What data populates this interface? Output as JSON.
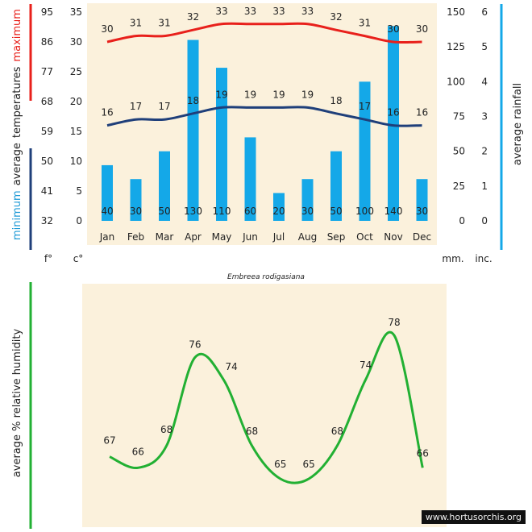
{
  "caption": "Embreea rodigasiana",
  "watermark": "www.hortusorchis.org",
  "colors": {
    "max": "#e8201b",
    "min": "#1f3f7a",
    "rain": "#14a8e8",
    "humidity": "#22b033",
    "paper": "#fbf1dc"
  },
  "chart_data": [
    {
      "type": "bar+line",
      "title": "",
      "categories": [
        "Jan",
        "Feb",
        "Mar",
        "Apr",
        "May",
        "Jun",
        "Jul",
        "Aug",
        "Sep",
        "Oct",
        "Nov",
        "Dec"
      ],
      "series": [
        {
          "name": "maximum",
          "type": "line",
          "values": [
            30,
            31,
            31,
            32,
            33,
            33,
            33,
            33,
            32,
            31,
            30,
            30
          ]
        },
        {
          "name": "minimum",
          "type": "line",
          "values": [
            16,
            17,
            17,
            18,
            19,
            19,
            19,
            19,
            18,
            17,
            16,
            16
          ]
        },
        {
          "name": "rainfall",
          "type": "bar",
          "values": [
            40,
            30,
            50,
            130,
            110,
            60,
            20,
            30,
            50,
            100,
            140,
            30
          ]
        }
      ],
      "left_axis_label": {
        "words": [
          "minimum",
          "average",
          "temperatures",
          "maximum"
        ]
      },
      "right_axis_label": "average rainfall",
      "celsius_ticks": [
        0,
        5,
        10,
        15,
        20,
        25,
        30,
        35
      ],
      "fahrenheit_ticks": [
        32,
        41,
        50,
        59,
        68,
        77,
        86,
        95
      ],
      "mm_ticks": [
        0,
        25,
        50,
        75,
        100,
        125,
        150
      ],
      "inch_ticks": [
        0,
        1,
        2,
        3,
        4,
        5,
        6
      ],
      "ylim_c": [
        0,
        35
      ],
      "ylim_mm": [
        0,
        150
      ],
      "unit_labels": {
        "f": "f°",
        "c": "c°",
        "mm": "mm.",
        "inc": "inc."
      }
    },
    {
      "type": "line",
      "title": "",
      "ylabel": "average %  relative humidity",
      "series": [
        {
          "name": "humidity",
          "values": [
            67,
            66,
            68,
            76,
            74,
            68,
            65,
            65,
            68,
            74,
            78,
            66
          ]
        }
      ]
    }
  ]
}
